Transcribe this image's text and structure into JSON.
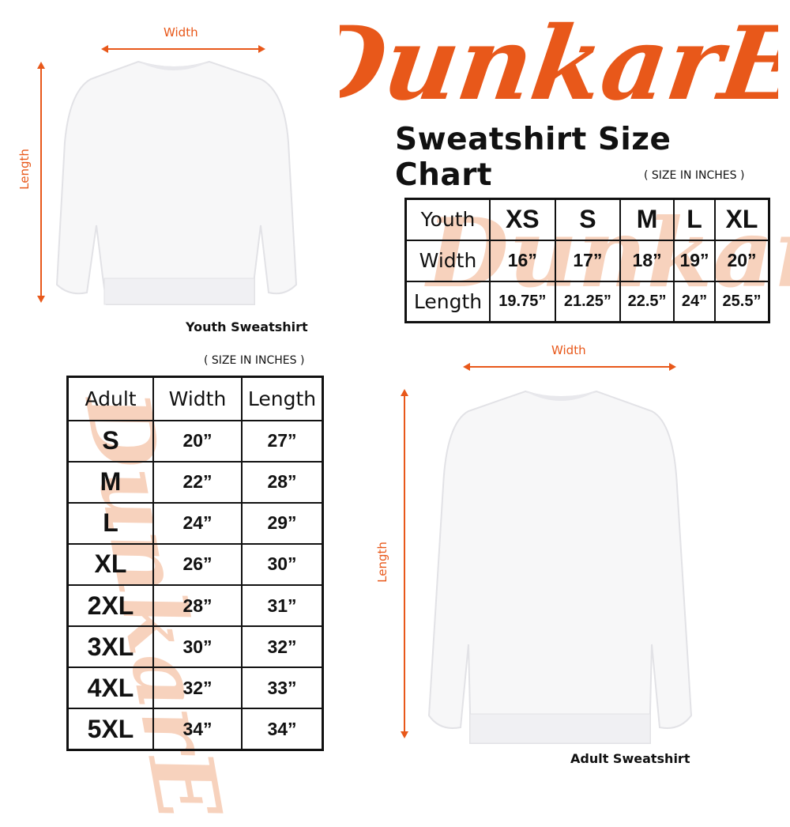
{
  "brand": {
    "logo_text": "DunkarE",
    "color": "#e8581a"
  },
  "title": "Sweatshirt Size Chart",
  "youth": {
    "note": "( SIZE IN INCHES )",
    "caption": "Youth Sweatshirt",
    "width_label": "Width",
    "length_label": "Length",
    "table": {
      "header": [
        "Youth",
        "XS",
        "S",
        "M",
        "L",
        "XL"
      ],
      "rows": [
        [
          "Width",
          "16”",
          "17”",
          "18”",
          "19”",
          "20”"
        ],
        [
          "Length",
          "19.75”",
          "21.25”",
          "22.5”",
          "24”",
          "25.5”"
        ]
      ]
    }
  },
  "adult": {
    "note": "( SIZE IN INCHES )",
    "caption": "Adult Sweatshirt",
    "width_label": "Width",
    "length_label": "Length",
    "table": {
      "header": [
        "Adult",
        "Width",
        "Length"
      ],
      "rows": [
        [
          "S",
          "20”",
          "27”"
        ],
        [
          "M",
          "22”",
          "28”"
        ],
        [
          "L",
          "24”",
          "29”"
        ],
        [
          "XL",
          "26”",
          "30”"
        ],
        [
          "2XL",
          "28”",
          "31”"
        ],
        [
          "3XL",
          "30”",
          "32”"
        ],
        [
          "4XL",
          "32”",
          "33”"
        ],
        [
          "5XL",
          "34”",
          "34”"
        ]
      ]
    }
  }
}
